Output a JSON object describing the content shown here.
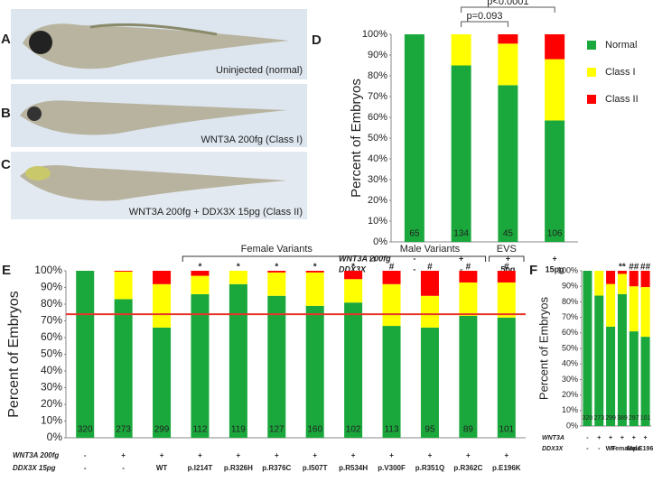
{
  "images": [
    {
      "label": "A",
      "caption": "Uninjected (normal)"
    },
    {
      "label": "B",
      "caption": "WNT3A 200fg (Class I)"
    },
    {
      "label": "C",
      "caption": "WNT3A 200fg + DDX3X 15pg (Class II)"
    }
  ],
  "chart_data": [
    {
      "type": "stacked_bar",
      "label": "D",
      "ylabel": "Percent of Embryos",
      "categories": [
        "65",
        "134",
        "45",
        "106"
      ],
      "rows": [
        {
          "label": "WNT3A 200fg",
          "values": [
            "-",
            "+",
            "+",
            "+"
          ]
        },
        {
          "label": "DDX3X",
          "values": [
            "-",
            "-",
            "5pg",
            "15pg"
          ]
        }
      ],
      "series": [
        {
          "name": "Normal",
          "color": "#1aa83c",
          "values": [
            100,
            85,
            75.5,
            58.5
          ]
        },
        {
          "name": "Class I",
          "color": "#ffff00",
          "values": [
            0,
            15,
            20,
            29.5
          ]
        },
        {
          "name": "Class II",
          "color": "#ff0000",
          "values": [
            0,
            0,
            4.5,
            12
          ]
        }
      ],
      "annotations": [
        "p=0.093",
        "p<0.0001"
      ],
      "legend": "right",
      "ylim": [
        0,
        100
      ],
      "yticks": [
        {
          "value": 0,
          "label": "0%"
        },
        {
          "value": 10,
          "label": "10%"
        },
        {
          "value": 20,
          "label": "20%"
        },
        {
          "value": 30,
          "label": "30%"
        },
        {
          "value": 40,
          "label": "40%"
        },
        {
          "value": 50,
          "label": "50%"
        },
        {
          "value": 60,
          "label": "60%"
        },
        {
          "value": 70,
          "label": "70%"
        },
        {
          "value": 80,
          "label": "80%"
        },
        {
          "value": 90,
          "label": "90%"
        },
        {
          "value": 100,
          "label": "100%"
        }
      ]
    },
    {
      "type": "stacked_bar",
      "label": "E",
      "ylabel": "Percent of Embryos",
      "categories": [
        "320",
        "273",
        "299",
        "112",
        "119",
        "127",
        "160",
        "102",
        "113",
        "95",
        "89",
        "101"
      ],
      "rows": [
        {
          "label": "WNT3A 200fg",
          "values": [
            "-",
            "+",
            "+",
            "+",
            "+",
            "+",
            "+",
            "+",
            "+",
            "+",
            "+",
            "+"
          ]
        },
        {
          "label": "DDX3X 15pg",
          "values": [
            "-",
            "-",
            "WT",
            "p.I214T",
            "p.R326H",
            "p.R376C",
            "p.I507T",
            "p.R534H",
            "p.V300F",
            "p.R351Q",
            "p.R362C",
            "p.E196K"
          ]
        }
      ],
      "series": [
        {
          "color": "#1aa83c",
          "values": [
            100,
            83,
            66,
            86,
            92,
            85,
            79,
            81,
            67,
            66,
            73,
            72
          ]
        },
        {
          "color": "#ffff00",
          "values": [
            0,
            16.5,
            26,
            11,
            8,
            14,
            20,
            14,
            25,
            19,
            20,
            21
          ]
        },
        {
          "color": "#ff0000",
          "values": [
            0,
            0.5,
            8,
            3,
            0,
            1,
            1,
            5,
            8,
            15,
            7,
            7
          ]
        }
      ],
      "markers": [
        null,
        null,
        null,
        "*",
        "*",
        "*",
        "*",
        "*",
        "#",
        "#",
        "#",
        "#"
      ],
      "group_labels": [
        "Female Variants",
        "Male Variants",
        "EVS"
      ],
      "reference_line": 74,
      "reference_color": "#e8332a",
      "ylim": [
        0,
        100
      ],
      "yticks": [
        {
          "value": 0,
          "label": "0%"
        },
        {
          "value": 10,
          "label": "10%"
        },
        {
          "value": 20,
          "label": "20%"
        },
        {
          "value": 30,
          "label": "30%"
        },
        {
          "value": 40,
          "label": "40%"
        },
        {
          "value": 50,
          "label": "50%"
        },
        {
          "value": 60,
          "label": "60%"
        },
        {
          "value": 70,
          "label": "70%"
        },
        {
          "value": 80,
          "label": "80%"
        },
        {
          "value": 90,
          "label": "90%"
        },
        {
          "value": 100,
          "label": "100%"
        }
      ]
    },
    {
      "type": "stacked_bar",
      "label": "F",
      "ylabel": "Percent of Embryos",
      "categories": [
        "320",
        "273",
        "299",
        "389",
        "297",
        "101"
      ],
      "rows": [
        {
          "label": "WNT3A",
          "values": [
            "-",
            "+",
            "+",
            "+",
            "+",
            "+"
          ]
        },
        {
          "label": "DDX3X",
          "values": [
            "-",
            "-",
            "WT",
            "Female",
            "Male",
            "p.E196K"
          ]
        }
      ],
      "series": [
        {
          "color": "#1aa83c",
          "values": [
            100,
            84,
            64,
            85,
            61,
            57.5
          ]
        },
        {
          "color": "#ffff00",
          "values": [
            0,
            16,
            27.5,
            13,
            29,
            32
          ]
        },
        {
          "color": "#ff0000",
          "values": [
            0,
            0,
            8.5,
            2,
            10,
            10.5
          ]
        }
      ],
      "markers": [
        null,
        null,
        null,
        "**",
        "##",
        "##"
      ],
      "ylim": [
        0,
        100
      ],
      "yticks": [
        {
          "value": 0,
          "label": "0%"
        },
        {
          "value": 10,
          "label": "10%"
        },
        {
          "value": 20,
          "label": "20%"
        },
        {
          "value": 30,
          "label": "30%"
        },
        {
          "value": 40,
          "label": "40%"
        },
        {
          "value": 50,
          "label": "50%"
        },
        {
          "value": 60,
          "label": "60%"
        },
        {
          "value": 70,
          "label": "70%"
        },
        {
          "value": 80,
          "label": "80%"
        },
        {
          "value": 90,
          "label": "90%"
        },
        {
          "value": 100,
          "label": "100%"
        }
      ]
    }
  ]
}
